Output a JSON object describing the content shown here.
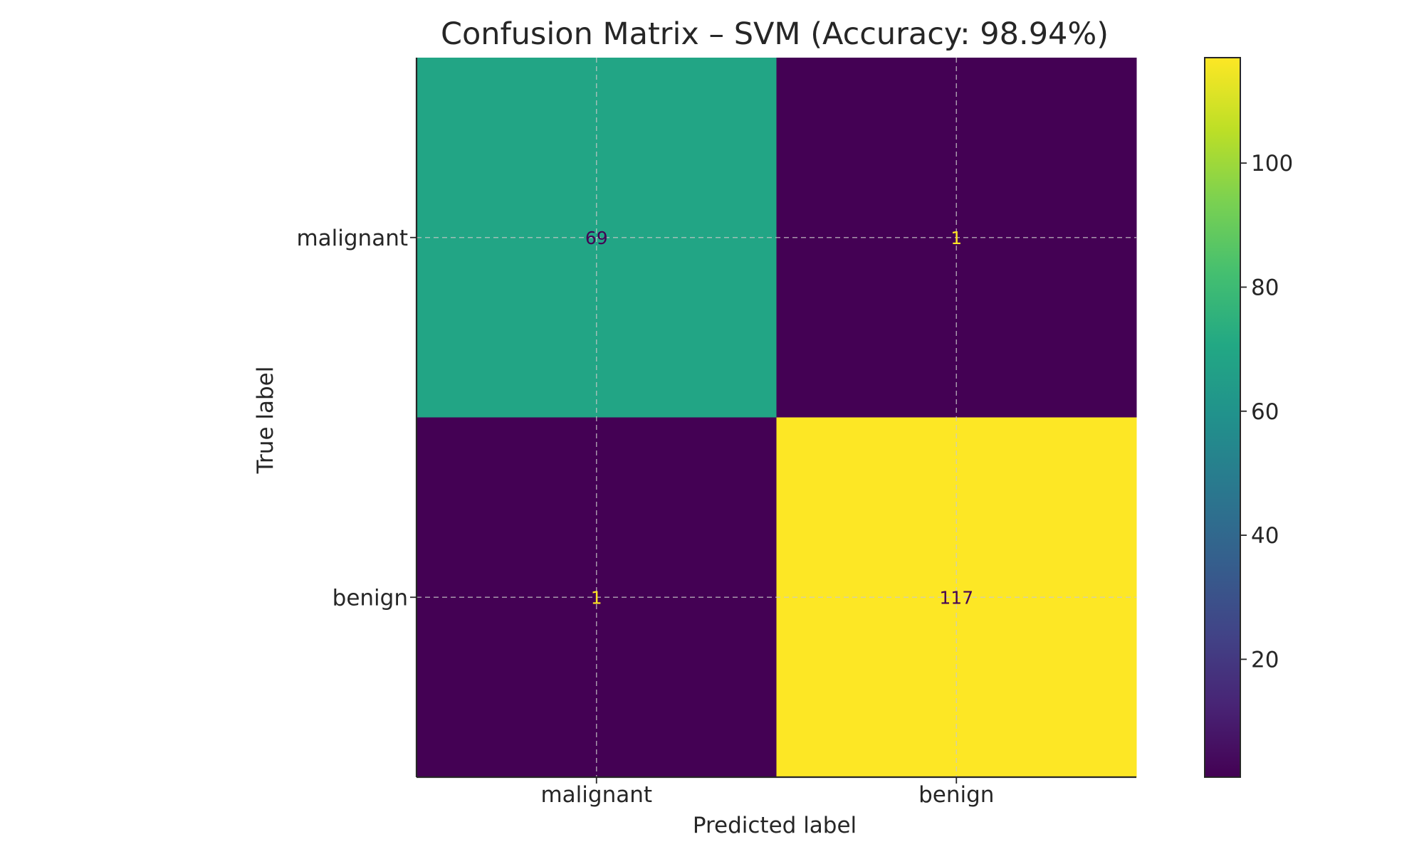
{
  "chart_data": {
    "type": "heatmap",
    "title": "Confusion Matrix – SVM (Accuracy: 98.94%)",
    "xlabel": "Predicted label",
    "ylabel": "True label",
    "x_categories": [
      "malignant",
      "benign"
    ],
    "y_categories": [
      "malignant",
      "benign"
    ],
    "values": [
      [
        69,
        1
      ],
      [
        1,
        117
      ]
    ],
    "colormap": "viridis",
    "colorbar": {
      "range": [
        1,
        117
      ],
      "ticks": [
        20,
        40,
        60,
        80,
        100
      ]
    },
    "grid": true
  }
}
